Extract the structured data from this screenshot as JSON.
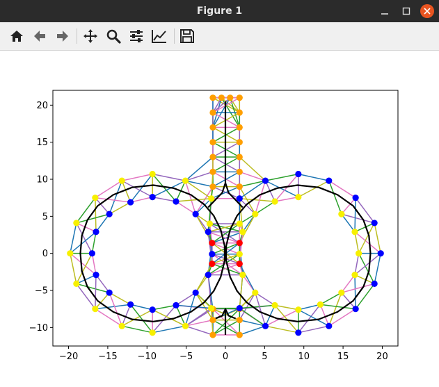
{
  "window": {
    "title": "Figure 1"
  },
  "toolbar": {
    "tools": [
      {
        "name": "home",
        "icon": "home-icon"
      },
      {
        "name": "back",
        "icon": "arrow-left-icon"
      },
      {
        "name": "forward",
        "icon": "arrow-right-icon"
      },
      {
        "name": "pan",
        "icon": "move-icon"
      },
      {
        "name": "zoom",
        "icon": "magnifier-icon"
      },
      {
        "name": "configure-subplots",
        "icon": "sliders-icon"
      },
      {
        "name": "edit-axis",
        "icon": "line-chart-icon"
      },
      {
        "name": "save",
        "icon": "floppy-icon"
      }
    ]
  },
  "chart_data": {
    "type": "scatter",
    "title": "",
    "xlabel": "",
    "ylabel": "",
    "xlim": [
      -22,
      22
    ],
    "ylim": [
      -12.5,
      22
    ],
    "xticks": [
      -20,
      -15,
      -10,
      -5,
      0,
      5,
      10,
      15,
      20
    ],
    "yticks": [
      -10,
      -5,
      0,
      5,
      10,
      15,
      20
    ],
    "xtick_labels": [
      "−20",
      "−15",
      "−10",
      "−5",
      "0",
      "5",
      "10",
      "15",
      "20"
    ],
    "ytick_labels": [
      "−10",
      "−5",
      "0",
      "5",
      "10",
      "15",
      "20"
    ],
    "grid": false,
    "colors": {
      "orange": "#ff9f00",
      "yellow": "#f7f000",
      "blue": "#0000ff",
      "red": "#ff0000",
      "black": "#000000",
      "edge_teal": "#1f77b4",
      "edge_green": "#2ca02c",
      "edge_pink": "#e377c2",
      "edge_purple": "#9467bd",
      "edge_olive": "#bcbd22"
    },
    "node_groups": [
      {
        "color": "orange",
        "points": [
          [
            -1.6,
            21
          ],
          [
            -0.5,
            21
          ],
          [
            0.6,
            21
          ],
          [
            1.8,
            21
          ],
          [
            -1.6,
            19
          ],
          [
            1.8,
            19
          ],
          [
            -1.6,
            17
          ],
          [
            1.8,
            17
          ],
          [
            -1.6,
            15
          ],
          [
            1.8,
            15
          ],
          [
            -1.6,
            13
          ],
          [
            1.8,
            13
          ],
          [
            -1.6,
            11
          ],
          [
            1.8,
            11
          ],
          [
            -1.6,
            9
          ],
          [
            1.8,
            9
          ],
          [
            -1.6,
            -7.5
          ],
          [
            1.8,
            -7.5
          ],
          [
            -1.6,
            -9
          ],
          [
            1.8,
            -9
          ],
          [
            -1.6,
            -11
          ],
          [
            1.8,
            -11
          ]
        ]
      },
      {
        "color": "yellow",
        "points": [
          [
            -9.3,
            10.7
          ],
          [
            -13.2,
            9.8
          ],
          [
            -16.6,
            7.5
          ],
          [
            -19,
            4.1
          ],
          [
            -19.8,
            0
          ],
          [
            -19,
            -4.1
          ],
          [
            -16.6,
            -7.5
          ],
          [
            -13.2,
            -9.8
          ],
          [
            -9.3,
            -10.7
          ],
          [
            -5.1,
            9.8
          ],
          [
            -5.1,
            -9.8
          ],
          [
            9.3,
            7.6
          ],
          [
            6.3,
            7
          ],
          [
            3.8,
            5.3
          ],
          [
            14.8,
            5.3
          ],
          [
            16.5,
            2.9
          ],
          [
            17,
            0
          ],
          [
            16.5,
            -2.9
          ],
          [
            14.8,
            -5.3
          ],
          [
            12.1,
            -6.9
          ],
          [
            9.3,
            -7.6
          ],
          [
            6.3,
            -7
          ],
          [
            3.8,
            -5.3
          ],
          [
            2.2,
            -2.9
          ],
          [
            1.8,
            -0.1
          ],
          [
            2.2,
            2.9
          ],
          [
            -1.8,
            7.4
          ],
          [
            -2,
            4
          ],
          [
            1.8,
            4
          ],
          [
            -1.8,
            -7.4
          ]
        ]
      },
      {
        "color": "blue",
        "points": [
          [
            -9.3,
            7.6
          ],
          [
            -12.1,
            6.9
          ],
          [
            -14.8,
            5.3
          ],
          [
            -16.5,
            2.9
          ],
          [
            -17,
            0
          ],
          [
            -16.5,
            -2.9
          ],
          [
            -14.8,
            -5.3
          ],
          [
            -12.1,
            -6.9
          ],
          [
            -9.3,
            -7.6
          ],
          [
            -6.3,
            7
          ],
          [
            -3.8,
            5.3
          ],
          [
            -2.2,
            2.9
          ],
          [
            -1.7,
            -0.1
          ],
          [
            -2.2,
            -2.9
          ],
          [
            -3.8,
            -5.3
          ],
          [
            -6.3,
            -7
          ],
          [
            9.3,
            10.7
          ],
          [
            13.2,
            9.8
          ],
          [
            16.6,
            7.5
          ],
          [
            19,
            4.1
          ],
          [
            19.8,
            0
          ],
          [
            19,
            -4.1
          ],
          [
            16.6,
            -7.5
          ],
          [
            13.2,
            -9.8
          ],
          [
            9.3,
            -10.7
          ],
          [
            5.1,
            9.8
          ],
          [
            5.1,
            -9.8
          ],
          [
            1.8,
            7.4
          ],
          [
            1.8,
            -7.4
          ]
        ]
      },
      {
        "color": "red",
        "points": [
          [
            -1.7,
            1.4
          ],
          [
            1.8,
            1.4
          ],
          [
            -1.7,
            -1.4
          ],
          [
            1.8,
            -1.4
          ]
        ]
      }
    ],
    "black_paths": [
      {
        "name": "left-loop",
        "points": [
          [
            -0.1,
            1.0
          ],
          [
            -0.6,
            3.2
          ],
          [
            -1.5,
            5.1
          ],
          [
            -2.7,
            6.6
          ],
          [
            -4.4,
            7.9
          ],
          [
            -6.6,
            8.8
          ],
          [
            -9.2,
            9.2
          ],
          [
            -11.9,
            8.9
          ],
          [
            -14.3,
            7.9
          ],
          [
            -16.3,
            6.4
          ],
          [
            -17.6,
            4.5
          ],
          [
            -18.3,
            2.4
          ],
          [
            -18.5,
            0
          ],
          [
            -18.3,
            -2.4
          ],
          [
            -17.6,
            -4.5
          ],
          [
            -16.3,
            -6.4
          ],
          [
            -14.3,
            -7.9
          ],
          [
            -11.9,
            -8.9
          ],
          [
            -9.2,
            -9.2
          ],
          [
            -6.6,
            -8.8
          ],
          [
            -4.4,
            -7.9
          ],
          [
            -2.7,
            -6.6
          ],
          [
            -1.5,
            -5.1
          ],
          [
            -0.6,
            -3.2
          ],
          [
            -0.1,
            -1.0
          ],
          [
            -0.1,
            1.0
          ]
        ]
      },
      {
        "name": "right-loop",
        "points": [
          [
            0.1,
            1.0
          ],
          [
            0.6,
            3.2
          ],
          [
            1.5,
            5.1
          ],
          [
            2.7,
            6.6
          ],
          [
            4.4,
            7.9
          ],
          [
            6.6,
            8.8
          ],
          [
            9.2,
            9.2
          ],
          [
            11.9,
            8.9
          ],
          [
            14.3,
            7.9
          ],
          [
            16.3,
            6.4
          ],
          [
            17.6,
            4.5
          ],
          [
            18.3,
            2.4
          ],
          [
            18.5,
            0
          ],
          [
            18.3,
            -2.4
          ],
          [
            17.6,
            -4.5
          ],
          [
            16.3,
            -6.4
          ],
          [
            14.3,
            -7.9
          ],
          [
            11.9,
            -8.9
          ],
          [
            9.2,
            -9.2
          ],
          [
            6.6,
            -8.8
          ],
          [
            4.4,
            -7.9
          ],
          [
            2.7,
            -6.6
          ],
          [
            1.5,
            -5.1
          ],
          [
            0.6,
            -3.2
          ],
          [
            0.1,
            -1.0
          ],
          [
            0.1,
            1.0
          ]
        ]
      },
      {
        "name": "stem-top",
        "points": [
          [
            0,
            20.5
          ],
          [
            0,
            9.5
          ],
          [
            -0.4,
            8.2
          ],
          [
            -1.3,
            7.2
          ],
          [
            -2.2,
            6.2
          ]
        ]
      },
      {
        "name": "stem-top-right",
        "points": [
          [
            0,
            9.5
          ],
          [
            0.4,
            8.2
          ],
          [
            1.3,
            7.2
          ],
          [
            2.2,
            6.2
          ]
        ]
      },
      {
        "name": "stem-bottom",
        "points": [
          [
            0,
            -11
          ],
          [
            0,
            -7.5
          ],
          [
            -0.4,
            -8.4
          ],
          [
            -1.3,
            -8.8
          ]
        ]
      },
      {
        "name": "stem-bottom-right",
        "points": [
          [
            0,
            -7.5
          ],
          [
            0.4,
            -8.4
          ],
          [
            1.3,
            -8.8
          ]
        ]
      }
    ]
  }
}
